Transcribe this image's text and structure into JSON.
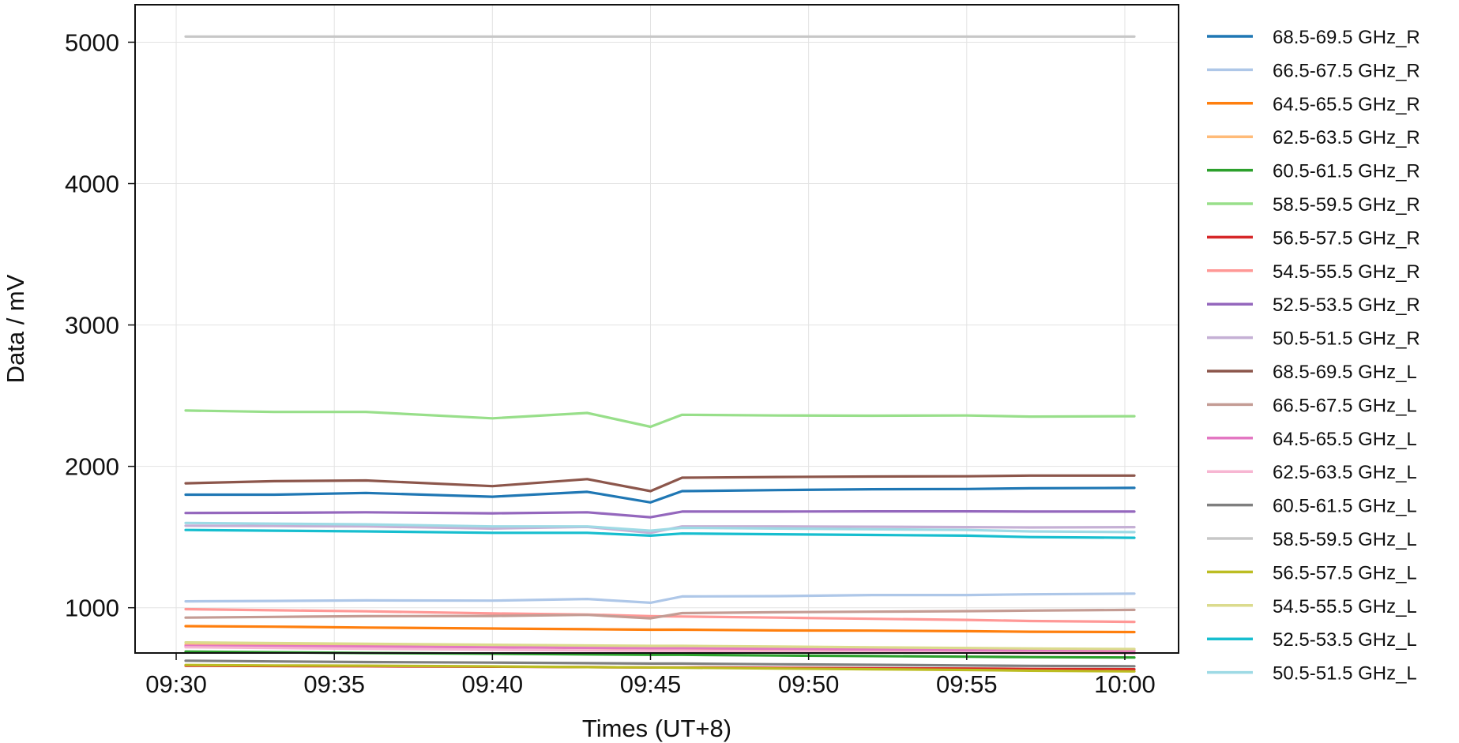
{
  "chart_data": {
    "type": "line",
    "xlabel": "Times (UT+8)",
    "ylabel": "Data / mV",
    "x_tick_labels": [
      "09:30",
      "09:35",
      "09:40",
      "09:45",
      "09:50",
      "09:55",
      "10:00"
    ],
    "x_tick_minutes": [
      0,
      5,
      10,
      15,
      20,
      25,
      30
    ],
    "y_ticks": [
      1000,
      2000,
      3000,
      4000,
      5000
    ],
    "y_tick_labels": [
      "1000",
      "2000",
      "3000",
      "4000",
      "5000"
    ],
    "xlim_minutes": [
      -1.3,
      31.7
    ],
    "ylim": [
      680,
      5265
    ],
    "grid": true,
    "legend_position": "outside-right",
    "x_time": [
      "09:30",
      "09:33",
      "09:36",
      "09:40",
      "09:43",
      "09:45",
      "09:46",
      "09:49",
      "09:52",
      "09:55",
      "09:57",
      "10:00"
    ],
    "x_minutes": [
      0.3,
      3.1,
      6.0,
      10.0,
      13.0,
      15.0,
      16.0,
      19.0,
      22.0,
      25.0,
      27.0,
      30.3
    ],
    "series": [
      {
        "name": "68.5-69.5 GHz_R",
        "color": "#1f77b4",
        "values": [
          1800,
          1800,
          1812,
          1785,
          1820,
          1745,
          1825,
          1832,
          1838,
          1840,
          1845,
          1848
        ]
      },
      {
        "name": "66.5-67.5 GHz_R",
        "color": "#aec7e8",
        "values": [
          1045,
          1048,
          1052,
          1050,
          1062,
          1035,
          1080,
          1082,
          1090,
          1090,
          1095,
          1100
        ]
      },
      {
        "name": "64.5-65.5 GHz_R",
        "color": "#ff7f0e",
        "values": [
          870,
          866,
          860,
          853,
          848,
          845,
          845,
          840,
          838,
          834,
          830,
          828
        ]
      },
      {
        "name": "62.5-63.5 GHz_R",
        "color": "#ffbb78",
        "values": [
          740,
          735,
          730,
          722,
          716,
          712,
          712,
          708,
          704,
          700,
          697,
          694
        ]
      },
      {
        "name": "60.5-61.5 GHz_R",
        "color": "#2ca02c",
        "values": [
          690,
          685,
          680,
          675,
          670,
          667,
          667,
          662,
          658,
          654,
          651,
          648
        ]
      },
      {
        "name": "58.5-59.5 GHz_R",
        "color": "#98df8a",
        "values": [
          2395,
          2385,
          2385,
          2340,
          2378,
          2280,
          2365,
          2360,
          2358,
          2360,
          2352,
          2355
        ]
      },
      {
        "name": "56.5-57.5 GHz_R",
        "color": "#d62728",
        "values": [
          590,
          588,
          586,
          583,
          580,
          578,
          578,
          575,
          572,
          570,
          567,
          565
        ]
      },
      {
        "name": "54.5-55.5 GHz_R",
        "color": "#ff9896",
        "values": [
          990,
          982,
          975,
          960,
          952,
          940,
          938,
          930,
          922,
          914,
          906,
          900
        ]
      },
      {
        "name": "52.5-53.5 GHz_R",
        "color": "#9467bd",
        "values": [
          1670,
          1672,
          1675,
          1668,
          1675,
          1640,
          1680,
          1680,
          1682,
          1682,
          1680,
          1680
        ]
      },
      {
        "name": "50.5-51.5 GHz_R",
        "color": "#c5b0d5",
        "values": [
          1580,
          1578,
          1575,
          1560,
          1572,
          1530,
          1575,
          1575,
          1573,
          1570,
          1568,
          1570
        ]
      },
      {
        "name": "68.5-69.5 GHz_L",
        "color": "#8c564b",
        "values": [
          1880,
          1895,
          1900,
          1860,
          1910,
          1825,
          1920,
          1925,
          1928,
          1930,
          1935,
          1935
        ]
      },
      {
        "name": "66.5-67.5 GHz_L",
        "color": "#c49c94",
        "values": [
          930,
          935,
          940,
          942,
          950,
          925,
          962,
          968,
          972,
          976,
          980,
          985
        ]
      },
      {
        "name": "64.5-65.5 GHz_L",
        "color": "#e377c2",
        "values": [
          730,
          728,
          725,
          720,
          717,
          714,
          714,
          710,
          705,
          700,
          698,
          695
        ]
      },
      {
        "name": "62.5-63.5 GHz_L",
        "color": "#f7b6d2",
        "values": [
          720,
          715,
          710,
          703,
          698,
          695,
          695,
          690,
          686,
          682,
          679,
          676
        ]
      },
      {
        "name": "60.5-61.5 GHz_L",
        "color": "#7f7f7f",
        "values": [
          625,
          620,
          616,
          612,
          608,
          605,
          605,
          600,
          596,
          592,
          589,
          586
        ]
      },
      {
        "name": "58.5-59.5 GHz_L",
        "color": "#c7c7c7",
        "values": [
          5040,
          5040,
          5040,
          5040,
          5040,
          5040,
          5040,
          5040,
          5040,
          5040,
          5040,
          5040
        ]
      },
      {
        "name": "56.5-57.5 GHz_L",
        "color": "#bcbd22",
        "values": [
          595,
          592,
          590,
          585,
          580,
          578,
          576,
          570,
          565,
          560,
          555,
          550
        ]
      },
      {
        "name": "54.5-55.5 GHz_L",
        "color": "#dbdb8d",
        "values": [
          755,
          750,
          745,
          738,
          733,
          730,
          730,
          725,
          720,
          715,
          712,
          708
        ]
      },
      {
        "name": "52.5-53.5 GHz_L",
        "color": "#17becf",
        "values": [
          1550,
          1545,
          1540,
          1530,
          1530,
          1510,
          1525,
          1520,
          1515,
          1510,
          1500,
          1495
        ]
      },
      {
        "name": "50.5-51.5 GHz_L",
        "color": "#9edae5",
        "values": [
          1600,
          1595,
          1590,
          1575,
          1575,
          1545,
          1565,
          1560,
          1555,
          1550,
          1540,
          1535
        ]
      }
    ]
  }
}
